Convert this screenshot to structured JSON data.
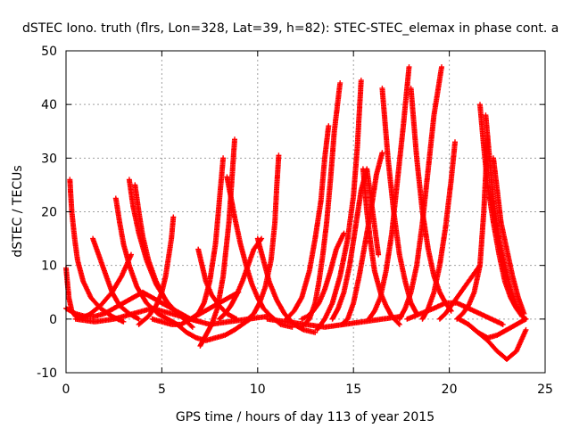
{
  "chart_data": {
    "type": "scatter",
    "title": "dSTEC Iono. truth (flrs, Lon=328, Lat=39, h=82): STEC-STEC_elemax in phase cont. a",
    "xlabel": "GPS time / hours of day 113 of year 2015",
    "ylabel": "dSTEC  / TECUs",
    "xlim": [
      0,
      25
    ],
    "ylim": [
      -10,
      50
    ],
    "x_ticks": [
      0,
      5,
      10,
      15,
      20,
      25
    ],
    "y_ticks": [
      -10,
      0,
      10,
      20,
      30,
      40,
      50
    ],
    "grid": true,
    "marker": "+",
    "color": "#ff0000",
    "series": [
      {
        "x": [
          0.0,
          0.15,
          0.3,
          0.5,
          0.8,
          1.2,
          1.8,
          2.4,
          2.9,
          3.4
        ],
        "y": [
          9.5,
          4,
          1.5,
          0.5,
          0.2,
          0.8,
          2.5,
          5,
          8,
          12
        ]
      },
      {
        "x": [
          0.2,
          0.3,
          0.45,
          0.6,
          0.9,
          1.3,
          1.8,
          2.4,
          3.0
        ],
        "y": [
          26,
          20,
          15,
          11,
          7,
          4,
          2,
          0.5,
          -0.5
        ]
      },
      {
        "x": [
          1.4,
          1.6,
          1.8,
          2.1,
          2.4,
          2.8,
          3.3,
          3.8
        ],
        "y": [
          15,
          13,
          11,
          8,
          5,
          2.5,
          1,
          0
        ]
      },
      {
        "x": [
          2.6,
          2.8,
          3.0,
          3.3,
          3.7,
          4.2,
          4.8,
          5.3,
          5.8
        ],
        "y": [
          22.5,
          18,
          14,
          10,
          6,
          3,
          1,
          0,
          -1
        ]
      },
      {
        "x": [
          3.3,
          3.5,
          3.8,
          4.2,
          4.7,
          5.3,
          6.0,
          6.6
        ],
        "y": [
          26,
          21,
          16,
          11,
          6.5,
          3,
          0.5,
          -1.5
        ]
      },
      {
        "x": [
          3.6,
          3.8,
          4.0,
          4.3,
          4.7,
          5.2,
          5.8
        ],
        "y": [
          25,
          20,
          15.5,
          11,
          7,
          3.5,
          1
        ]
      },
      {
        "x": [
          0.0,
          0.5,
          1.0,
          1.5,
          2.0,
          2.5,
          3.0,
          3.5,
          4.0,
          4.5,
          5.0,
          5.5,
          6.0,
          6.5,
          7.0
        ],
        "y": [
          2,
          1,
          0.5,
          0.5,
          1,
          2,
          3,
          4,
          5,
          4,
          3,
          2,
          1,
          0,
          -0.5
        ]
      },
      {
        "x": [
          4.5,
          5.0,
          5.5,
          6.0,
          6.5,
          7.0,
          7.5,
          8.0,
          8.5,
          9.0
        ],
        "y": [
          0,
          -0.5,
          -1,
          -1,
          0,
          1,
          2,
          3,
          4,
          5
        ]
      },
      {
        "x": [
          5.6,
          5.5,
          5.35,
          5.2,
          5.0,
          4.7,
          4.3,
          3.8
        ],
        "y": [
          19,
          15,
          11.5,
          8,
          5,
          2.5,
          0.5,
          -1
        ]
      },
      {
        "x": [
          5.8,
          6.3,
          6.8,
          7.3,
          7.8,
          8.3,
          8.8,
          9.2,
          9.6
        ],
        "y": [
          -1,
          -2.5,
          -3.5,
          -4,
          -3.5,
          -3,
          -2,
          -1,
          0
        ]
      },
      {
        "x": [
          6.9,
          7.1,
          7.3,
          7.6,
          8.0,
          8.4,
          8.9
        ],
        "y": [
          13,
          10,
          7,
          4.5,
          2.5,
          1,
          0
        ]
      },
      {
        "x": [
          7.0,
          7.3,
          7.6,
          7.9,
          8.2,
          8.5,
          8.8
        ],
        "y": [
          -5,
          -3,
          -1,
          2,
          8,
          18,
          33.5
        ]
      },
      {
        "x": [
          6.5,
          6.9,
          7.2,
          7.5,
          7.8,
          8.0,
          8.2
        ],
        "y": [
          0,
          1,
          3,
          7,
          14,
          22,
          30
        ]
      },
      {
        "x": [
          8.0,
          8.3,
          8.6,
          8.9,
          9.2,
          9.5,
          9.8,
          10.2
        ],
        "y": [
          0,
          1,
          2.5,
          4.5,
          7,
          10,
          13,
          15
        ]
      },
      {
        "x": [
          8.4,
          8.8,
          9.1,
          9.4,
          9.7,
          10.0,
          10.3,
          10.7,
          11.2,
          11.8
        ],
        "y": [
          26.5,
          19,
          14,
          10,
          6.5,
          4,
          2,
          0.5,
          -1,
          -1.5
        ]
      },
      {
        "x": [
          9.5,
          9.8,
          10.1,
          10.4,
          10.7,
          10.9,
          11.0,
          11.1
        ],
        "y": [
          0,
          1,
          3,
          6,
          11,
          18,
          25,
          30.5
        ]
      },
      {
        "x": [
          10.0,
          10.3,
          10.6,
          11.0,
          11.4,
          11.9,
          12.4,
          13.0
        ],
        "y": [
          15,
          11,
          7,
          3.5,
          1,
          -1,
          -2,
          -2.5
        ]
      },
      {
        "x": [
          11.5,
          11.9,
          12.3,
          12.7,
          13.0,
          13.3,
          13.5,
          13.7
        ],
        "y": [
          0,
          1.5,
          4,
          9,
          15,
          22,
          30,
          36
        ]
      },
      {
        "x": [
          12.3,
          12.6,
          12.9,
          13.2,
          13.5,
          13.8,
          14.1,
          14.5
        ],
        "y": [
          0,
          0.5,
          1.5,
          3,
          5.5,
          9,
          13,
          16
        ]
      },
      {
        "x": [
          12.3,
          12.7,
          13.0,
          13.2,
          13.4,
          13.6,
          13.8,
          14.0,
          14.3
        ],
        "y": [
          -1.5,
          0,
          3,
          7,
          12,
          18,
          26,
          35,
          44
        ]
      },
      {
        "x": [
          13.1,
          13.5,
          13.9,
          14.3,
          14.7,
          15.0,
          15.2,
          15.4
        ],
        "y": [
          -2,
          0,
          3,
          8,
          15,
          23,
          32,
          44.5
        ]
      },
      {
        "x": [
          13.9,
          14.2,
          14.5,
          14.8,
          15.1,
          15.4,
          15.7,
          16.0,
          16.3
        ],
        "y": [
          0,
          2,
          5,
          10,
          17,
          24,
          28,
          20,
          12
        ]
      },
      {
        "x": [
          14.4,
          14.7,
          15.0,
          15.3,
          15.6,
          15.9,
          16.2,
          16.5
        ],
        "y": [
          -1,
          0,
          3,
          8,
          14,
          20,
          27,
          31
        ]
      },
      {
        "x": [
          15.5,
          15.7,
          15.9,
          16.1,
          16.4,
          16.7,
          17.0,
          17.4
        ],
        "y": [
          28,
          20,
          14,
          9,
          5,
          2.5,
          0.5,
          -1
        ]
      },
      {
        "x": [
          15.8,
          16.1,
          16.4,
          16.7,
          17.0,
          17.3,
          17.6,
          17.9
        ],
        "y": [
          0,
          1.5,
          4,
          9,
          16,
          26,
          36,
          47
        ]
      },
      {
        "x": [
          16.5,
          16.8,
          17.1,
          17.4,
          17.7,
          18.0,
          18.3
        ],
        "y": [
          43,
          30,
          20,
          12,
          7,
          3,
          1
        ]
      },
      {
        "x": [
          17.4,
          17.7,
          18.0,
          18.3,
          18.6,
          18.9,
          19.2,
          19.6
        ],
        "y": [
          0,
          2,
          5,
          10,
          18,
          28,
          38,
          47
        ]
      },
      {
        "x": [
          18.0,
          18.3,
          18.6,
          18.9,
          19.2,
          19.5,
          19.8,
          20.1
        ],
        "y": [
          43,
          30,
          20,
          13,
          8,
          5,
          3,
          1.5
        ]
      },
      {
        "x": [
          18.6,
          18.9,
          19.2,
          19.5,
          19.8,
          20.1,
          20.3
        ],
        "y": [
          0,
          2,
          5,
          10,
          17,
          26,
          33
        ]
      },
      {
        "x": [
          19.5,
          19.8,
          20.1,
          20.4,
          20.8,
          21.2,
          21.6
        ],
        "y": [
          0,
          1,
          2.5,
          4,
          6,
          8,
          10
        ]
      },
      {
        "x": [
          17.8,
          18.5,
          19.2,
          19.8,
          20.4,
          21.0,
          21.6,
          22.2,
          22.8
        ],
        "y": [
          0,
          1,
          2,
          3,
          3,
          2,
          1,
          0,
          -1
        ]
      },
      {
        "x": [
          20.4,
          20.7,
          21.0,
          21.3,
          21.6,
          21.8,
          22.0
        ],
        "y": [
          0,
          1,
          2.5,
          5,
          10,
          20,
          34
        ]
      },
      {
        "x": [
          21.6,
          21.8,
          22.0,
          22.3,
          22.6,
          22.9,
          23.2,
          23.5,
          23.8,
          24.0
        ],
        "y": [
          40,
          32,
          25,
          18,
          12,
          7,
          4,
          2,
          0.5,
          0
        ]
      },
      {
        "x": [
          21.9,
          22.1,
          22.3,
          22.6,
          22.9,
          23.2,
          23.5,
          23.8
        ],
        "y": [
          38,
          30,
          22,
          15,
          10,
          5.5,
          2.5,
          0.5
        ]
      },
      {
        "x": [
          22.3,
          22.5,
          22.7,
          23.0,
          23.3,
          23.6,
          23.9
        ],
        "y": [
          30,
          24,
          18,
          13,
          8,
          4,
          1
        ]
      },
      {
        "x": [
          20.5,
          21.0,
          21.5,
          22.0,
          22.5,
          23.0,
          23.5,
          24.0
        ],
        "y": [
          0,
          -1,
          -2.5,
          -4,
          -6,
          -7.5,
          -6,
          -2
        ]
      },
      {
        "x": [
          21.0,
          21.5,
          22.0,
          22.5,
          23.0,
          23.5,
          24.0
        ],
        "y": [
          -1,
          -2.5,
          -3.5,
          -3,
          -2,
          -1,
          0
        ]
      },
      {
        "x": [
          0.5,
          1.5,
          2.5,
          3.5,
          4.5,
          5.5,
          6.5,
          7.5,
          8.5,
          9.5,
          10.5
        ],
        "y": [
          0,
          -0.5,
          0,
          1,
          2,
          1,
          0,
          -1,
          -0.5,
          0,
          0.5
        ]
      },
      {
        "x": [
          10.5,
          11.5,
          12.5,
          13.5,
          14.5,
          15.5,
          16.5,
          17.5
        ],
        "y": [
          0,
          -0.5,
          -1,
          -1.5,
          -1,
          -0.5,
          0,
          0.5
        ]
      }
    ]
  }
}
